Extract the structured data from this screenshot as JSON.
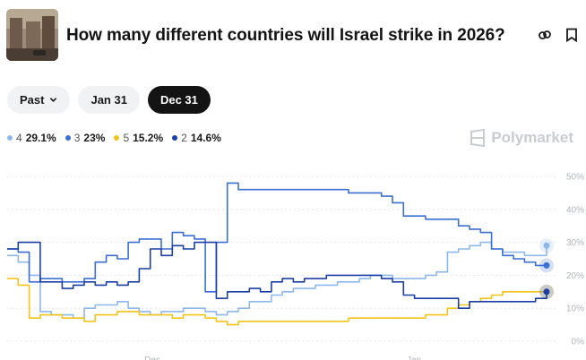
{
  "header": {
    "title": "How many different countries will Israel strike in 2026?",
    "thumbnail_icon": "market-photo"
  },
  "filters": {
    "past_label": "Past",
    "items": [
      "Jan 31",
      "Dec 31"
    ],
    "active": "Dec 31"
  },
  "legend": [
    {
      "name": "4",
      "value": "29.1%",
      "color": "#8fb8ea"
    },
    {
      "name": "3",
      "value": "23%",
      "color": "#3b6fd4"
    },
    {
      "name": "5",
      "value": "15.2%",
      "color": "#f2c31b"
    },
    {
      "name": "2",
      "value": "14.6%",
      "color": "#1b3fa6"
    }
  ],
  "brand": {
    "name": "Polymarket"
  },
  "chart_data": {
    "type": "line",
    "y_ticks": [
      "50%",
      "40%",
      "30%",
      "20%",
      "10%",
      "0%"
    ],
    "ylim": [
      0,
      50
    ],
    "x_ticks": [
      "Dec",
      "Jan"
    ],
    "grid": true,
    "series": [
      {
        "name": "4",
        "color": "#8fb8ea",
        "values": [
          26,
          24,
          20,
          9,
          8,
          8,
          7,
          10,
          11,
          11,
          12,
          10,
          9,
          8,
          9,
          9,
          10,
          10,
          9,
          8,
          9,
          10,
          12,
          12,
          14,
          15,
          16,
          16,
          17,
          17,
          18,
          18,
          19,
          20,
          20,
          19,
          19,
          19,
          20,
          21,
          27,
          28,
          29,
          30,
          28,
          27,
          27,
          26,
          26,
          29
        ]
      },
      {
        "name": "3",
        "color": "#3b6fd4",
        "values": [
          28,
          27,
          18,
          19,
          19,
          18,
          18,
          19,
          24,
          26,
          25,
          30,
          31,
          31,
          28,
          33,
          32,
          31,
          15,
          30,
          48,
          46,
          46,
          46,
          46,
          46,
          46,
          46,
          46,
          46,
          46,
          45,
          45,
          45,
          44,
          42,
          38,
          38,
          37,
          37,
          37,
          35,
          34,
          33,
          28,
          26,
          25,
          24,
          23,
          23
        ]
      },
      {
        "name": "5",
        "color": "#f2c31b",
        "values": [
          19,
          17,
          7,
          8,
          8,
          7,
          7,
          6,
          8,
          8,
          9,
          9,
          8,
          8,
          8,
          7,
          8,
          8,
          7,
          6,
          5,
          6,
          6,
          6,
          6,
          6,
          6,
          6,
          6,
          6,
          6,
          7,
          7,
          7,
          7,
          7,
          7,
          7,
          8,
          8,
          10,
          11,
          12,
          13,
          14,
          15,
          15,
          15,
          15,
          15
        ]
      },
      {
        "name": "2",
        "color": "#1b3fa6",
        "values": [
          28,
          30,
          30,
          18,
          18,
          16,
          17,
          18,
          17,
          18,
          17,
          18,
          22,
          28,
          26,
          29,
          28,
          30,
          30,
          13,
          15,
          15,
          16,
          15,
          18,
          19,
          18,
          19,
          19,
          20,
          20,
          20,
          20,
          20,
          19,
          18,
          14,
          13,
          13,
          13,
          13,
          10,
          12,
          12,
          12,
          12,
          12,
          12,
          13,
          15
        ]
      }
    ]
  }
}
